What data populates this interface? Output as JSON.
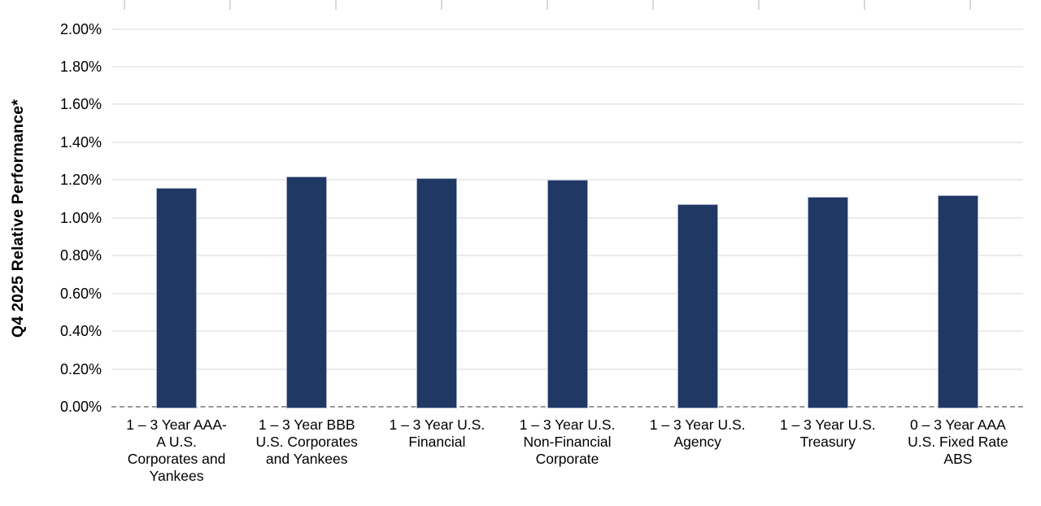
{
  "chart_data": {
    "type": "bar",
    "title": "",
    "xlabel": "",
    "ylabel": "Q4 2025 Relative Performance*",
    "categories": [
      "1 – 3 Year AAA-A U.S. Corporates and Yankees",
      "1 – 3 Year BBB U.S. Corporates and Yankees",
      "1 – 3 Year U.S. Financial",
      "1 – 3 Year U.S. Non-Financial Corporate",
      "1 – 3 Year U.S. Agency",
      "1 – 3 Year U.S. Treasury",
      "0 – 3 Year AAA U.S. Fixed Rate ABS"
    ],
    "category_lines": [
      [
        "1 – 3 Year AAA-",
        "A U.S.",
        "Corporates and",
        "Yankees"
      ],
      [
        "1 – 3 Year BBB",
        "U.S. Corporates",
        "and Yankees"
      ],
      [
        "1 – 3 Year U.S.",
        "Financial"
      ],
      [
        "1 – 3 Year U.S.",
        "Non-Financial",
        "Corporate"
      ],
      [
        "1 – 3 Year U.S.",
        "Agency"
      ],
      [
        "1 – 3 Year U.S.",
        "Treasury"
      ],
      [
        "0 – 3 Year AAA",
        "U.S. Fixed Rate",
        "ABS"
      ]
    ],
    "values": [
      1.16,
      1.22,
      1.21,
      1.2,
      1.07,
      1.11,
      1.12
    ],
    "value_unit": "percent",
    "ytick_labels": [
      "0.00%",
      "0.20%",
      "0.40%",
      "0.60%",
      "0.80%",
      "1.00%",
      "1.20%",
      "1.40%",
      "1.60%",
      "1.80%",
      "2.00%"
    ],
    "ytick_values": [
      0,
      0.2,
      0.4,
      0.6,
      0.8,
      1.0,
      1.2,
      1.4,
      1.6,
      1.8,
      2.0
    ],
    "ylim": [
      0,
      2.0
    ],
    "grid": "horizontal",
    "legend": "none",
    "baseline_style": "dashed",
    "colors": {
      "bar_fill": "#203864",
      "bar_border": "#a6b0c6",
      "gridline": "#ebebeb",
      "baseline": "#999999",
      "top_tick": "#d9d9d9",
      "text": "#000000"
    }
  }
}
